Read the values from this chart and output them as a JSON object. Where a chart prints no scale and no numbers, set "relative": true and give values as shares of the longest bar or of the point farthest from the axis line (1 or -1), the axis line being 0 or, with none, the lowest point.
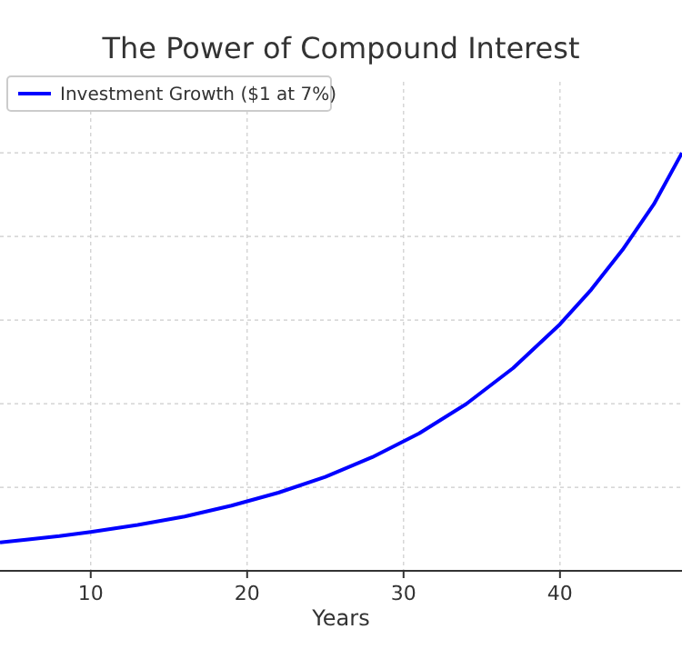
{
  "chart_data": {
    "type": "line",
    "title": "The Power of Compound Interest",
    "xlabel": "Years",
    "relative": true,
    "x": [
      4.2,
      6,
      8,
      10,
      13,
      16,
      19,
      22,
      25,
      28,
      31,
      34,
      37,
      40,
      42,
      44,
      46,
      47.8
    ],
    "series": [
      {
        "name": "Investment Growth ($1 at 7%)",
        "color": "#0000ff",
        "values": [
          0.068,
          0.075,
          0.083,
          0.093,
          0.11,
          0.13,
          0.156,
          0.187,
          0.225,
          0.272,
          0.329,
          0.399,
          0.485,
          0.59,
          0.673,
          0.768,
          0.877,
          1
        ]
      }
    ],
    "xlim": [
      4.2,
      47.8
    ],
    "xticks": [
      10,
      20,
      30,
      40
    ],
    "grid": true,
    "legend": "top left",
    "marker": "none",
    "line_style": "solid"
  }
}
